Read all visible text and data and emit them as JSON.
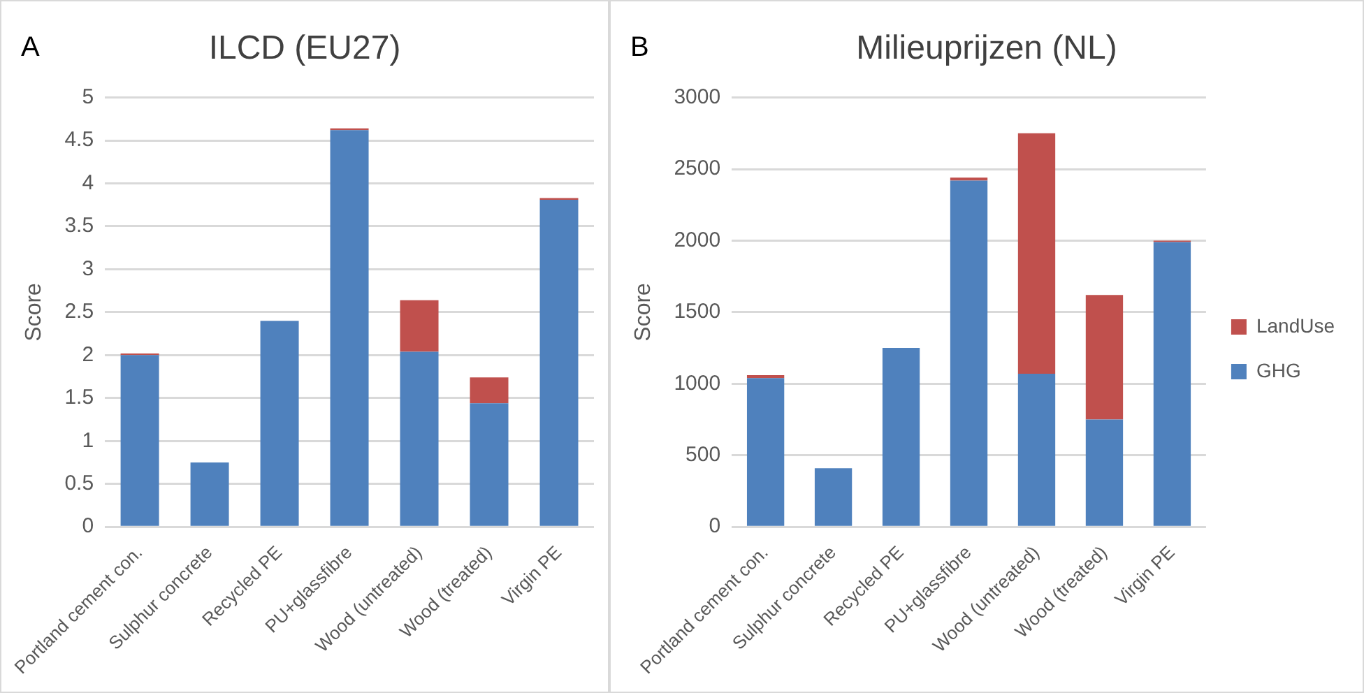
{
  "chart_data": [
    {
      "type": "bar",
      "title": "ILCD (EU27)",
      "ylabel": "Score",
      "annotations": [
        "A"
      ],
      "stacked": true,
      "grid": "y",
      "legend": false,
      "categories": [
        "Portland cement con.",
        "Sulphur concrete",
        "Recycled PE",
        "PU+glassfibre",
        "Wood (untreated)",
        "Wood (treated)",
        "Virgin PE"
      ],
      "series": [
        {
          "color": "#4f81bd",
          "values": [
            2.0,
            0.75,
            2.4,
            4.62,
            2.04,
            1.44,
            3.81
          ]
        },
        {
          "color": "#c0504d",
          "values": [
            0.02,
            0,
            0,
            0.02,
            0.6,
            0.3,
            0.02
          ]
        }
      ],
      "ylim": [
        0,
        5
      ],
      "yticks": [
        0,
        0.5,
        1,
        1.5,
        2,
        2.5,
        3,
        3.5,
        4,
        4.5,
        5
      ]
    },
    {
      "type": "bar",
      "title": "Milieuprijzen (NL)",
      "ylabel": "Score",
      "annotations": [
        "B"
      ],
      "stacked": true,
      "grid": "y",
      "legend": "right",
      "categories": [
        "Portland cement con.",
        "Sulphur concrete",
        "Recycled PE",
        "PU+glassfibre",
        "Wood (untreated)",
        "Wood (treated)",
        "Virgin PE"
      ],
      "series": [
        {
          "name": "GHG",
          "color": "#4f81bd",
          "values": [
            1040,
            410,
            1250,
            2420,
            1070,
            750,
            1990
          ]
        },
        {
          "name": "LandUse",
          "color": "#c0504d",
          "values": [
            20,
            0,
            0,
            20,
            1680,
            870,
            10
          ]
        }
      ],
      "ylim": [
        0,
        3000
      ],
      "yticks": [
        0,
        500,
        1000,
        1500,
        2000,
        2500,
        3000
      ]
    }
  ]
}
